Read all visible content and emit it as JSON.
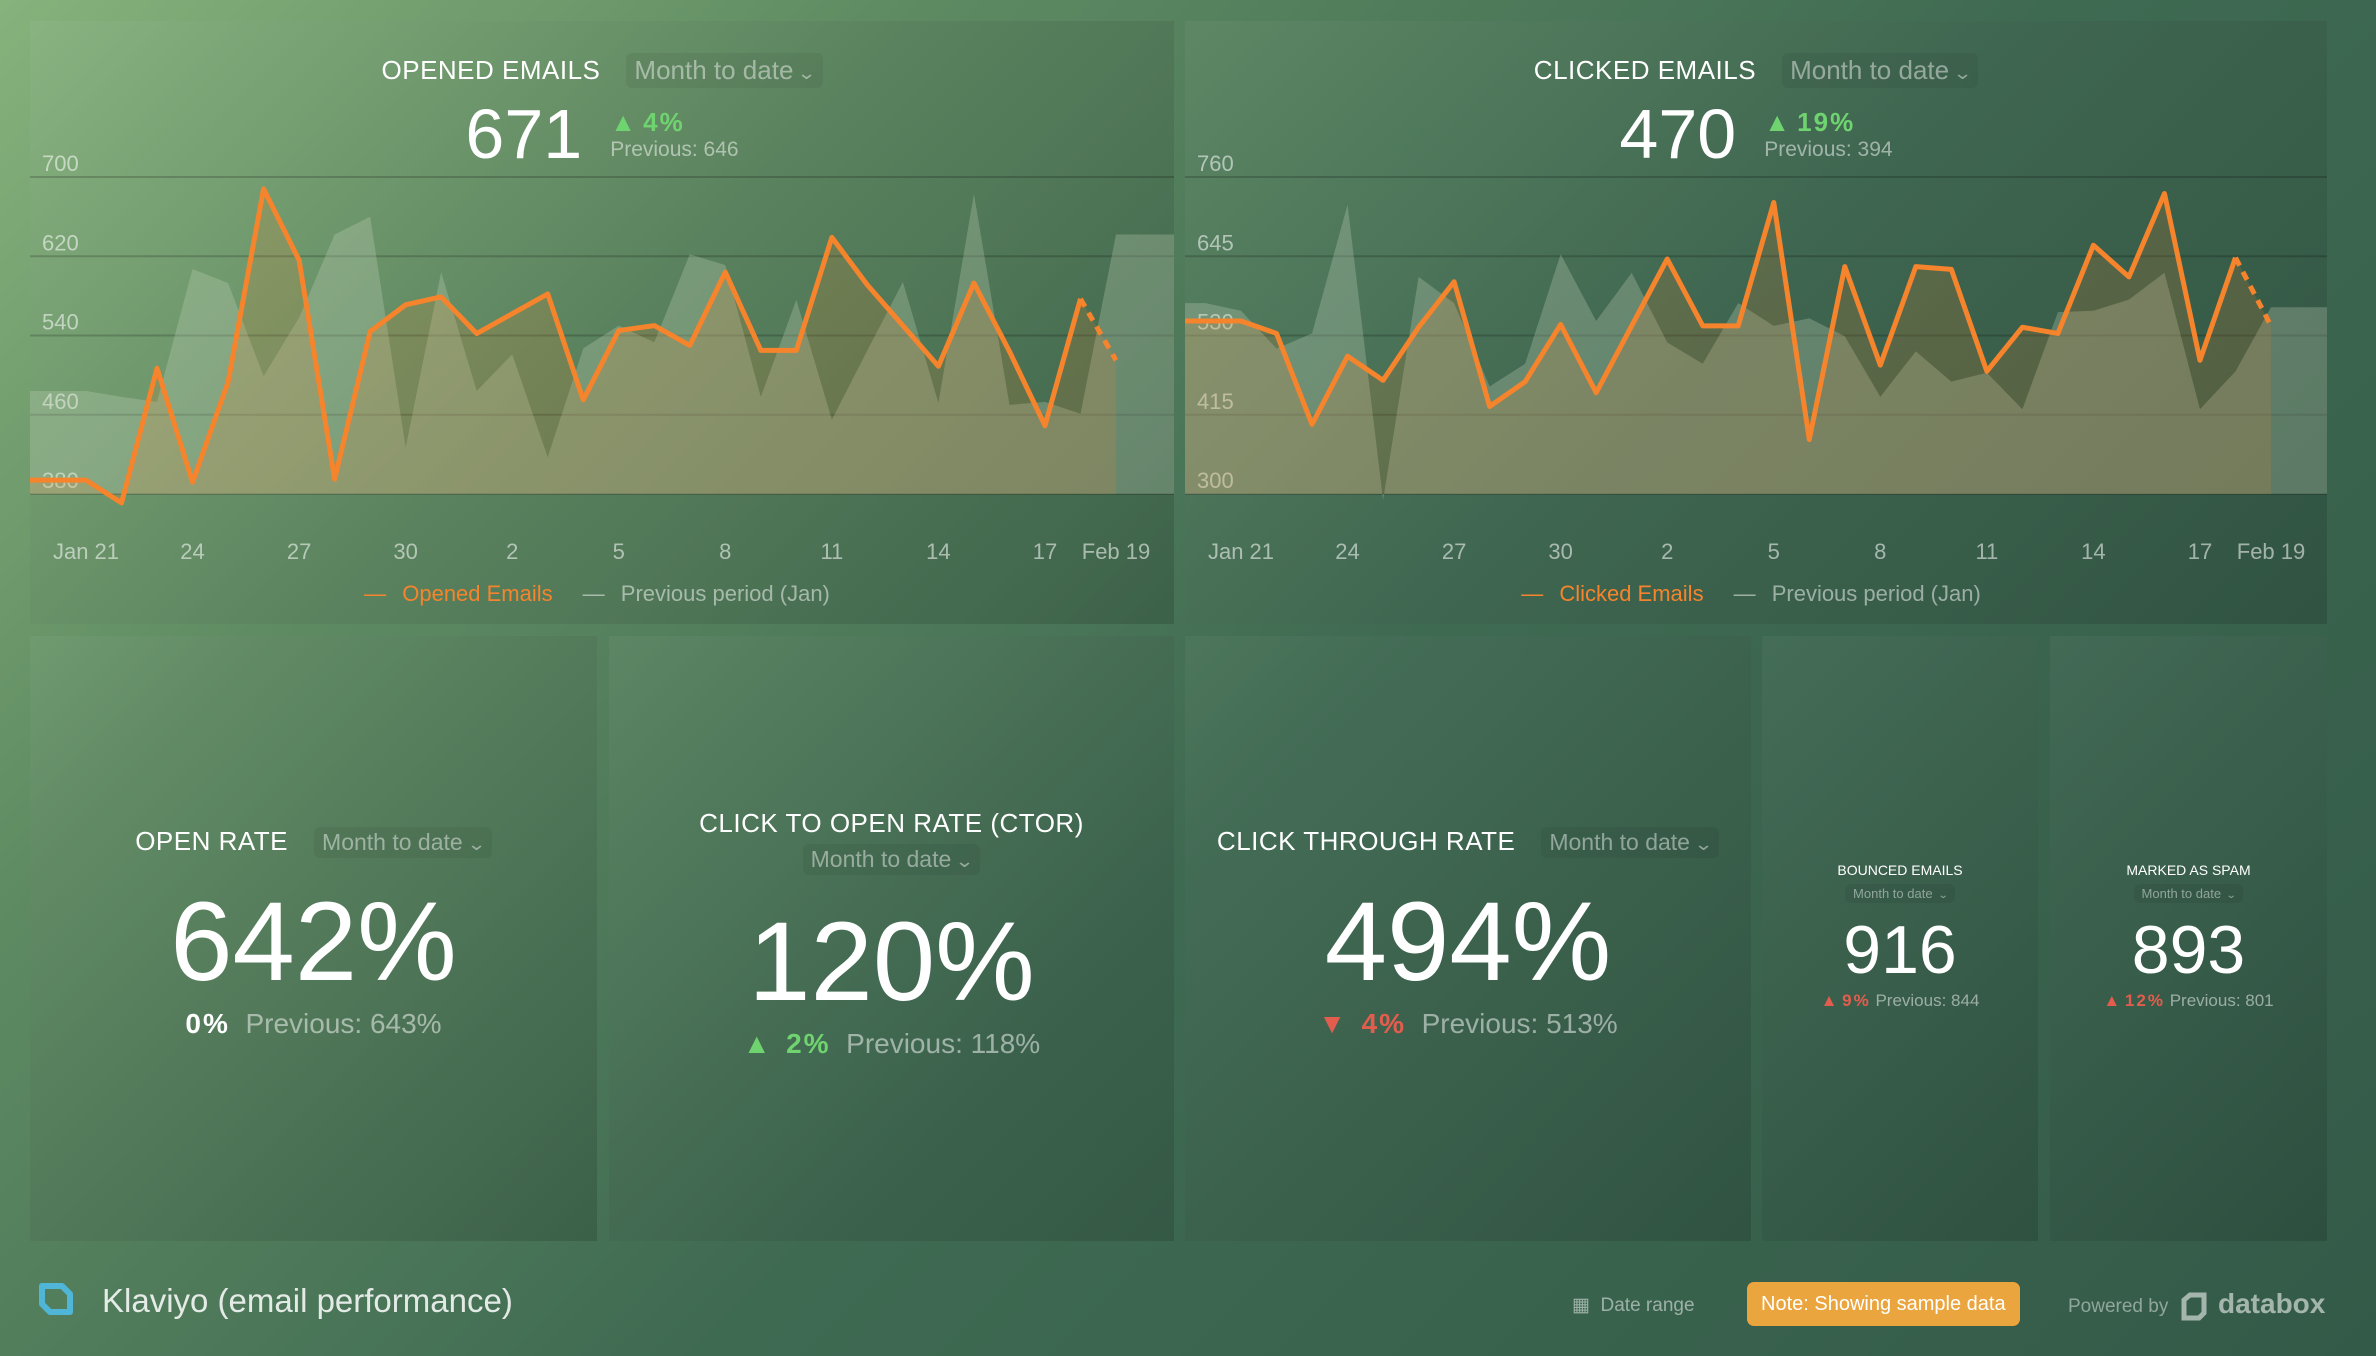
{
  "colors": {
    "accent": "#f5842c",
    "up": "#6fd36f",
    "down": "#e35d4e",
    "note": "#eba53e"
  },
  "opened": {
    "title": "OPENED EMAILS",
    "range": "Month to date",
    "value": "671",
    "change": "4%",
    "previous": "Previous: 646",
    "legend_current": "Opened Emails",
    "legend_previous": "Previous period (Jan)"
  },
  "clicked": {
    "title": "CLICKED EMAILS",
    "range": "Month to date",
    "value": "470",
    "change": "19%",
    "previous": "Previous: 394",
    "legend_current": "Clicked Emails",
    "legend_previous": "Previous period (Jan)"
  },
  "open_rate": {
    "title": "OPEN RATE",
    "range": "Month to date",
    "value": "642%",
    "change": "0%",
    "previous": "Previous: 643%"
  },
  "ctor": {
    "title": "CLICK TO OPEN RATE (CTOR)",
    "range": "Month to date",
    "value": "120%",
    "change": "2%",
    "previous": "Previous: 118%"
  },
  "ctr": {
    "title": "CLICK THROUGH RATE",
    "range": "Month to date",
    "value": "494%",
    "change": "4%",
    "previous": "Previous: 513%"
  },
  "bounced": {
    "title": "BOUNCED EMAILS",
    "range": "Month to date",
    "value": "916",
    "change": "9%",
    "previous": "Previous: 844"
  },
  "spam": {
    "title": "MARKED AS SPAM",
    "range": "Month to date",
    "value": "893",
    "change": "12%",
    "previous": "Previous: 801"
  },
  "footer": {
    "dashboard_title": "Klaviyo (email performance)",
    "date_range": "Date range",
    "note": "Note: Showing sample data",
    "powered_by": "Powered by",
    "brand": "databox"
  },
  "chart_data": [
    {
      "type": "line",
      "title": "OPENED EMAILS",
      "x_start": "Jan 20",
      "x_end": "Feb 19",
      "xticks": [
        {
          "i": 1,
          "label": "Jan 21"
        },
        {
          "i": 4,
          "label": "24"
        },
        {
          "i": 7,
          "label": "27"
        },
        {
          "i": 10,
          "label": "30"
        },
        {
          "i": 13,
          "label": "2"
        },
        {
          "i": 16,
          "label": "5"
        },
        {
          "i": 19,
          "label": "8"
        },
        {
          "i": 22,
          "label": "11"
        },
        {
          "i": 25,
          "label": "14"
        },
        {
          "i": 28,
          "label": "17"
        },
        {
          "i": 30,
          "label": "Feb 19"
        }
      ],
      "yticks": [
        380,
        460,
        540,
        620,
        700
      ],
      "ylim": [
        380,
        700
      ],
      "series": [
        {
          "name": "Opened Emails",
          "values": [
            394,
            394,
            371,
            507,
            392,
            493,
            688,
            616,
            395,
            544,
            571,
            579,
            542,
            562,
            582,
            475,
            545,
            550,
            530,
            604,
            525,
            525,
            639,
            591,
            550,
            509,
            593,
            524,
            449,
            577,
            515
          ]
        },
        {
          "name": "Previous period (Jan)",
          "values": [
            484,
            484,
            478,
            473,
            607,
            593,
            499,
            558,
            642,
            660,
            427,
            604,
            484,
            521,
            417,
            527,
            550,
            533,
            622,
            611,
            478,
            576,
            455,
            525,
            594,
            472,
            683,
            470,
            473,
            461,
            642
          ]
        }
      ]
    },
    {
      "type": "line",
      "title": "CLICKED EMAILS",
      "x_start": "Jan 20",
      "x_end": "Feb 19",
      "xticks": [
        {
          "i": 1,
          "label": "Jan 21"
        },
        {
          "i": 4,
          "label": "24"
        },
        {
          "i": 7,
          "label": "27"
        },
        {
          "i": 10,
          "label": "30"
        },
        {
          "i": 13,
          "label": "2"
        },
        {
          "i": 16,
          "label": "5"
        },
        {
          "i": 19,
          "label": "8"
        },
        {
          "i": 22,
          "label": "11"
        },
        {
          "i": 25,
          "label": "14"
        },
        {
          "i": 28,
          "label": "17"
        },
        {
          "i": 30,
          "label": "Feb 19"
        }
      ],
      "yticks": [
        300,
        415,
        530,
        645,
        760
      ],
      "ylim": [
        300,
        760
      ],
      "series": [
        {
          "name": "Clicked Emails",
          "values": [
            551,
            551,
            533,
            401,
            500,
            465,
            542,
            608,
            427,
            463,
            546,
            447,
            544,
            641,
            544,
            544,
            723,
            379,
            630,
            487,
            630,
            626,
            478,
            542,
            533,
            661,
            615,
            736,
            494,
            643,
            544
          ]
        },
        {
          "name": "Previous period (Jan)",
          "values": [
            577,
            566,
            511,
            533,
            720,
            291,
            615,
            577,
            456,
            489,
            648,
            551,
            621,
            520,
            489,
            577,
            544,
            555,
            529,
            441,
            507,
            463,
            476,
            423,
            564,
            566,
            582,
            621,
            423,
            478,
            571
          ]
        }
      ]
    }
  ]
}
